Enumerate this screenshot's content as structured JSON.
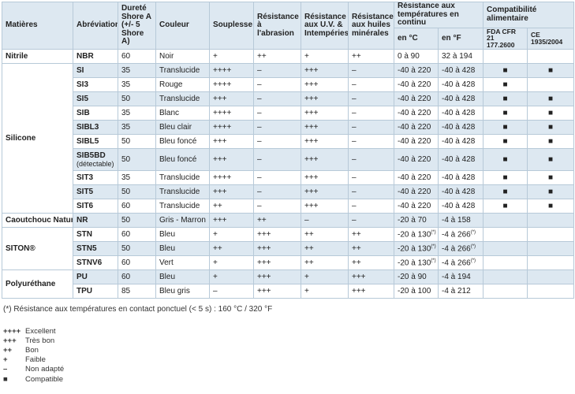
{
  "headers": {
    "matieres": "Matières",
    "abreviation": "Abréviation",
    "durete": "Dureté Shore A (+/- 5 Shore A)",
    "couleur": "Couleur",
    "souplesse": "Souplesse",
    "res_abrasion": "Résistance à l'abrasion",
    "res_uv": "Résistance aux U.V. & Intempéries",
    "res_huiles": "Résistance aux huiles minérales",
    "res_temp": "Résistance aux températures en continu",
    "en_c": "en °C",
    "en_f": "en °F",
    "compat": "Compatibilité alimentaire",
    "fda": "FDA CFR 21 177.2600",
    "ce": "CE 1935/2004"
  },
  "groups": [
    {
      "name": "Nitrile",
      "rows": [
        {
          "abbr": "NBR",
          "durete": "60",
          "couleur": "Noir",
          "souplesse": "+",
          "abrasion": "++",
          "uv": "+",
          "huiles": "++",
          "tc": "0 à 90",
          "tf": "32 à 194",
          "fda": "",
          "ce": ""
        }
      ]
    },
    {
      "name": "Silicone",
      "rows": [
        {
          "abbr": "SI",
          "durete": "35",
          "couleur": "Translucide",
          "souplesse": "++++",
          "abrasion": "–",
          "uv": "+++",
          "huiles": "–",
          "tc": "-40 à 220",
          "tf": "-40 à 428",
          "fda": "■",
          "ce": "■"
        },
        {
          "abbr": "SI3",
          "durete": "35",
          "couleur": "Rouge",
          "souplesse": "++++",
          "abrasion": "–",
          "uv": "+++",
          "huiles": "–",
          "tc": "-40 à 220",
          "tf": "-40 à 428",
          "fda": "■",
          "ce": ""
        },
        {
          "abbr": "SI5",
          "durete": "50",
          "couleur": "Translucide",
          "souplesse": "+++",
          "abrasion": "–",
          "uv": "+++",
          "huiles": "–",
          "tc": "-40 à 220",
          "tf": "-40 à 428",
          "fda": "■",
          "ce": "■"
        },
        {
          "abbr": "SIB",
          "durete": "35",
          "couleur": "Blanc",
          "souplesse": "++++",
          "abrasion": "–",
          "uv": "+++",
          "huiles": "–",
          "tc": "-40 à 220",
          "tf": "-40 à 428",
          "fda": "■",
          "ce": "■"
        },
        {
          "abbr": "SIBL3",
          "durete": "35",
          "couleur": "Bleu clair",
          "souplesse": "++++",
          "abrasion": "–",
          "uv": "+++",
          "huiles": "–",
          "tc": "-40 à 220",
          "tf": "-40 à 428",
          "fda": "■",
          "ce": "■"
        },
        {
          "abbr": "SIBL5",
          "durete": "50",
          "couleur": "Bleu foncé",
          "souplesse": "+++",
          "abrasion": "–",
          "uv": "+++",
          "huiles": "–",
          "tc": "-40 à 220",
          "tf": "-40 à 428",
          "fda": "■",
          "ce": "■"
        },
        {
          "abbr": "SIB5BD",
          "abbr_sub": "(détectable)",
          "durete": "50",
          "couleur": "Bleu foncé",
          "souplesse": "+++",
          "abrasion": "–",
          "uv": "+++",
          "huiles": "–",
          "tc": "-40 à 220",
          "tf": "-40 à 428",
          "fda": "■",
          "ce": "■"
        },
        {
          "abbr": "SIT3",
          "durete": "35",
          "couleur": "Translucide",
          "souplesse": "++++",
          "abrasion": "–",
          "uv": "+++",
          "huiles": "–",
          "tc": "-40 à 220",
          "tf": "-40 à 428",
          "fda": "■",
          "ce": "■"
        },
        {
          "abbr": "SIT5",
          "durete": "50",
          "couleur": "Translucide",
          "souplesse": "+++",
          "abrasion": "–",
          "uv": "+++",
          "huiles": "–",
          "tc": "-40 à 220",
          "tf": "-40 à 428",
          "fda": "■",
          "ce": "■"
        },
        {
          "abbr": "SIT6",
          "durete": "60",
          "couleur": "Translucide",
          "souplesse": "++",
          "abrasion": "–",
          "uv": "+++",
          "huiles": "–",
          "tc": "-40 à 220",
          "tf": "-40 à 428",
          "fda": "■",
          "ce": "■"
        }
      ]
    },
    {
      "name": "Caoutchouc Naturel",
      "rows": [
        {
          "abbr": "NR",
          "durete": "50",
          "couleur": "Gris - Marron",
          "souplesse": "+++",
          "abrasion": "++",
          "uv": "–",
          "huiles": "–",
          "tc": "-20 à 70",
          "tf": "-4 à 158",
          "fda": "",
          "ce": ""
        }
      ]
    },
    {
      "name": "SITON®",
      "rows": [
        {
          "abbr": "STN",
          "durete": "60",
          "couleur": "Bleu",
          "souplesse": "+",
          "abrasion": "+++",
          "uv": "++",
          "huiles": "++",
          "tc": "-20 à 130",
          "tc_mark": "(*)",
          "tf": "-4 à 266",
          "tf_mark": "(*)",
          "fda": "",
          "ce": ""
        },
        {
          "abbr": "STN5",
          "durete": "50",
          "couleur": "Bleu",
          "souplesse": "++",
          "abrasion": "+++",
          "uv": "++",
          "huiles": "++",
          "tc": "-20 à 130",
          "tc_mark": "(*)",
          "tf": "-4 à 266",
          "tf_mark": "(*)",
          "fda": "",
          "ce": ""
        },
        {
          "abbr": "STNV6",
          "durete": "60",
          "couleur": "Vert",
          "souplesse": "+",
          "abrasion": "+++",
          "uv": "++",
          "huiles": "++",
          "tc": "-20 à 130",
          "tc_mark": "(*)",
          "tf": "-4 à 266",
          "tf_mark": "(*)",
          "fda": "",
          "ce": ""
        }
      ]
    },
    {
      "name": "Polyuréthane",
      "rows": [
        {
          "abbr": "PU",
          "durete": "60",
          "couleur": "Bleu",
          "souplesse": "+",
          "abrasion": "+++",
          "uv": "+",
          "huiles": "+++",
          "tc": "-20 à 90",
          "tf": "-4 à 194",
          "fda": "",
          "ce": ""
        },
        {
          "abbr": "TPU",
          "durete": "85",
          "couleur": "Bleu gris",
          "souplesse": "–",
          "abrasion": "+++",
          "uv": "+",
          "huiles": "+++",
          "tc": "-20 à 100",
          "tf": "-4 à 212",
          "fda": "",
          "ce": ""
        }
      ]
    }
  ],
  "footnote": "(*) Résistance aux températures en contact ponctuel (< 5 s) : 160 °C / 320 °F",
  "legend": [
    {
      "sym": "++++",
      "label": "Excellent"
    },
    {
      "sym": "+++",
      "label": "Très bon"
    },
    {
      "sym": "++",
      "label": "Bon"
    },
    {
      "sym": "+",
      "label": "Faible"
    },
    {
      "sym": "–",
      "label": "Non adapté"
    },
    {
      "sym": "■",
      "label": "Compatible"
    }
  ],
  "colors": {
    "header_bg": "#dde8f1",
    "border": "#b7c9d8"
  }
}
